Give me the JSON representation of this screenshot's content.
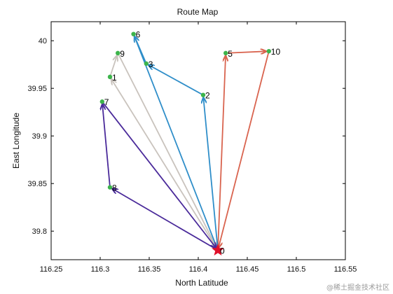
{
  "chart_data": {
    "type": "line",
    "title": "Route Map",
    "xlabel": "North Latitude",
    "ylabel": "East Longitude",
    "xlim": [
      116.25,
      116.55
    ],
    "ylim": [
      39.77,
      40.02
    ],
    "x_ticks": [
      116.25,
      116.3,
      116.35,
      116.4,
      116.45,
      116.5,
      116.55
    ],
    "x_tick_labels": [
      "116.25",
      "116.3",
      "116.35",
      "116.4",
      "116.45",
      "116.5",
      "116.55"
    ],
    "y_ticks": [
      39.8,
      39.85,
      39.9,
      39.95,
      40.0
    ],
    "y_tick_labels": [
      "39.8",
      "39.85",
      "39.9",
      "39.95",
      "40"
    ],
    "grid": false,
    "points": [
      {
        "label": "0",
        "x": 116.42,
        "y": 39.78
      },
      {
        "label": "1",
        "x": 116.31,
        "y": 39.962
      },
      {
        "label": "2",
        "x": 116.405,
        "y": 39.943
      },
      {
        "label": "3",
        "x": 116.347,
        "y": 39.976
      },
      {
        "label": "5",
        "x": 116.428,
        "y": 39.987
      },
      {
        "label": "6",
        "x": 116.334,
        "y": 40.007
      },
      {
        "label": "7",
        "x": 116.302,
        "y": 39.936
      },
      {
        "label": "8",
        "x": 116.31,
        "y": 39.846
      },
      {
        "label": "9",
        "x": 116.318,
        "y": 39.987
      },
      {
        "label": "10",
        "x": 116.472,
        "y": 39.989
      }
    ],
    "series": [
      {
        "color": "#d9644f",
        "route": [
          "0",
          "5",
          "10",
          "0"
        ]
      },
      {
        "color": "#c9c3bd",
        "route": [
          "0",
          "1",
          "9",
          "0"
        ]
      },
      {
        "color": "#2f8ec9",
        "route": [
          "0",
          "2",
          "3",
          "6",
          "0"
        ]
      },
      {
        "color": "#4a2a9a",
        "route": [
          "0",
          "8",
          "7",
          "0"
        ]
      }
    ],
    "start_marker": {
      "label": "0",
      "shape": "star",
      "color": "#e0102a"
    },
    "point_marker_color": "#3cb44b"
  },
  "watermark": "@稀土掘金技术社区"
}
